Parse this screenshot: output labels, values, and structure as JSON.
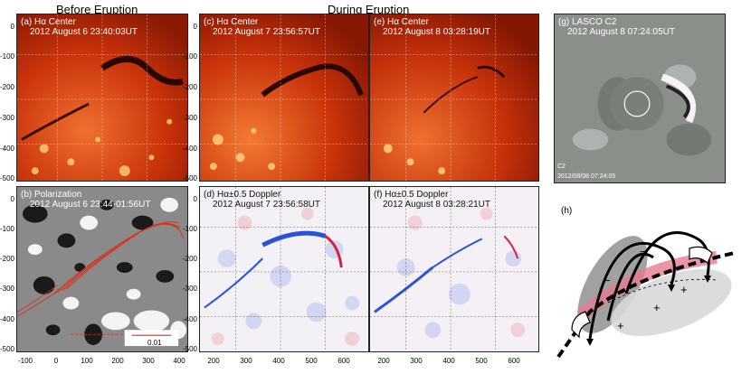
{
  "headers": {
    "before": "Before Eruption",
    "during": "During Eruption"
  },
  "panels": {
    "a": {
      "label": "(a) Hα Center",
      "date": "2012 August 6 23:40:03UT"
    },
    "b": {
      "label": "(b) Polarization",
      "date": "2012 August 6 23:44-01:56UT"
    },
    "c": {
      "label": "(c) Hα Center",
      "date": "2012 August 7 23:56:57UT"
    },
    "d": {
      "label": "(d) Hα±0.5 Doppler",
      "date": "2012 August 7 23:56:58UT"
    },
    "e": {
      "label": "(e) Hα Center",
      "date": "2012 August 8 03:28:19UT"
    },
    "f": {
      "label": "(f) Hα±0.5 Doppler",
      "date": "2012 August 8 03:28:21UT"
    },
    "g": {
      "label": "(g) LASCO C2",
      "date": "2012 August 8 07:24:05UT",
      "corner_text": "C2",
      "stamp": "2012/08/08 07:24:05"
    },
    "h": {
      "label": "(h)"
    }
  },
  "axes": {
    "y_ticks": [
      "0",
      "-100",
      "-200",
      "-300",
      "-400",
      "-500"
    ],
    "x_ticks_left": [
      "-100",
      "0",
      "100",
      "200",
      "300",
      "400"
    ],
    "x_ticks_mid": [
      "200",
      "300",
      "400",
      "500",
      "600"
    ],
    "x_ticks_right": [
      "200",
      "300",
      "400",
      "500",
      "600"
    ]
  },
  "scale_bar": "0.01",
  "cartoon": {
    "plus": "+",
    "minus": "−"
  },
  "colors": {
    "halpha": "#c8320a",
    "doppler_blue": "#2a52d8",
    "doppler_red": "#d8203a",
    "lasco_gray": "#8a8f8a"
  }
}
